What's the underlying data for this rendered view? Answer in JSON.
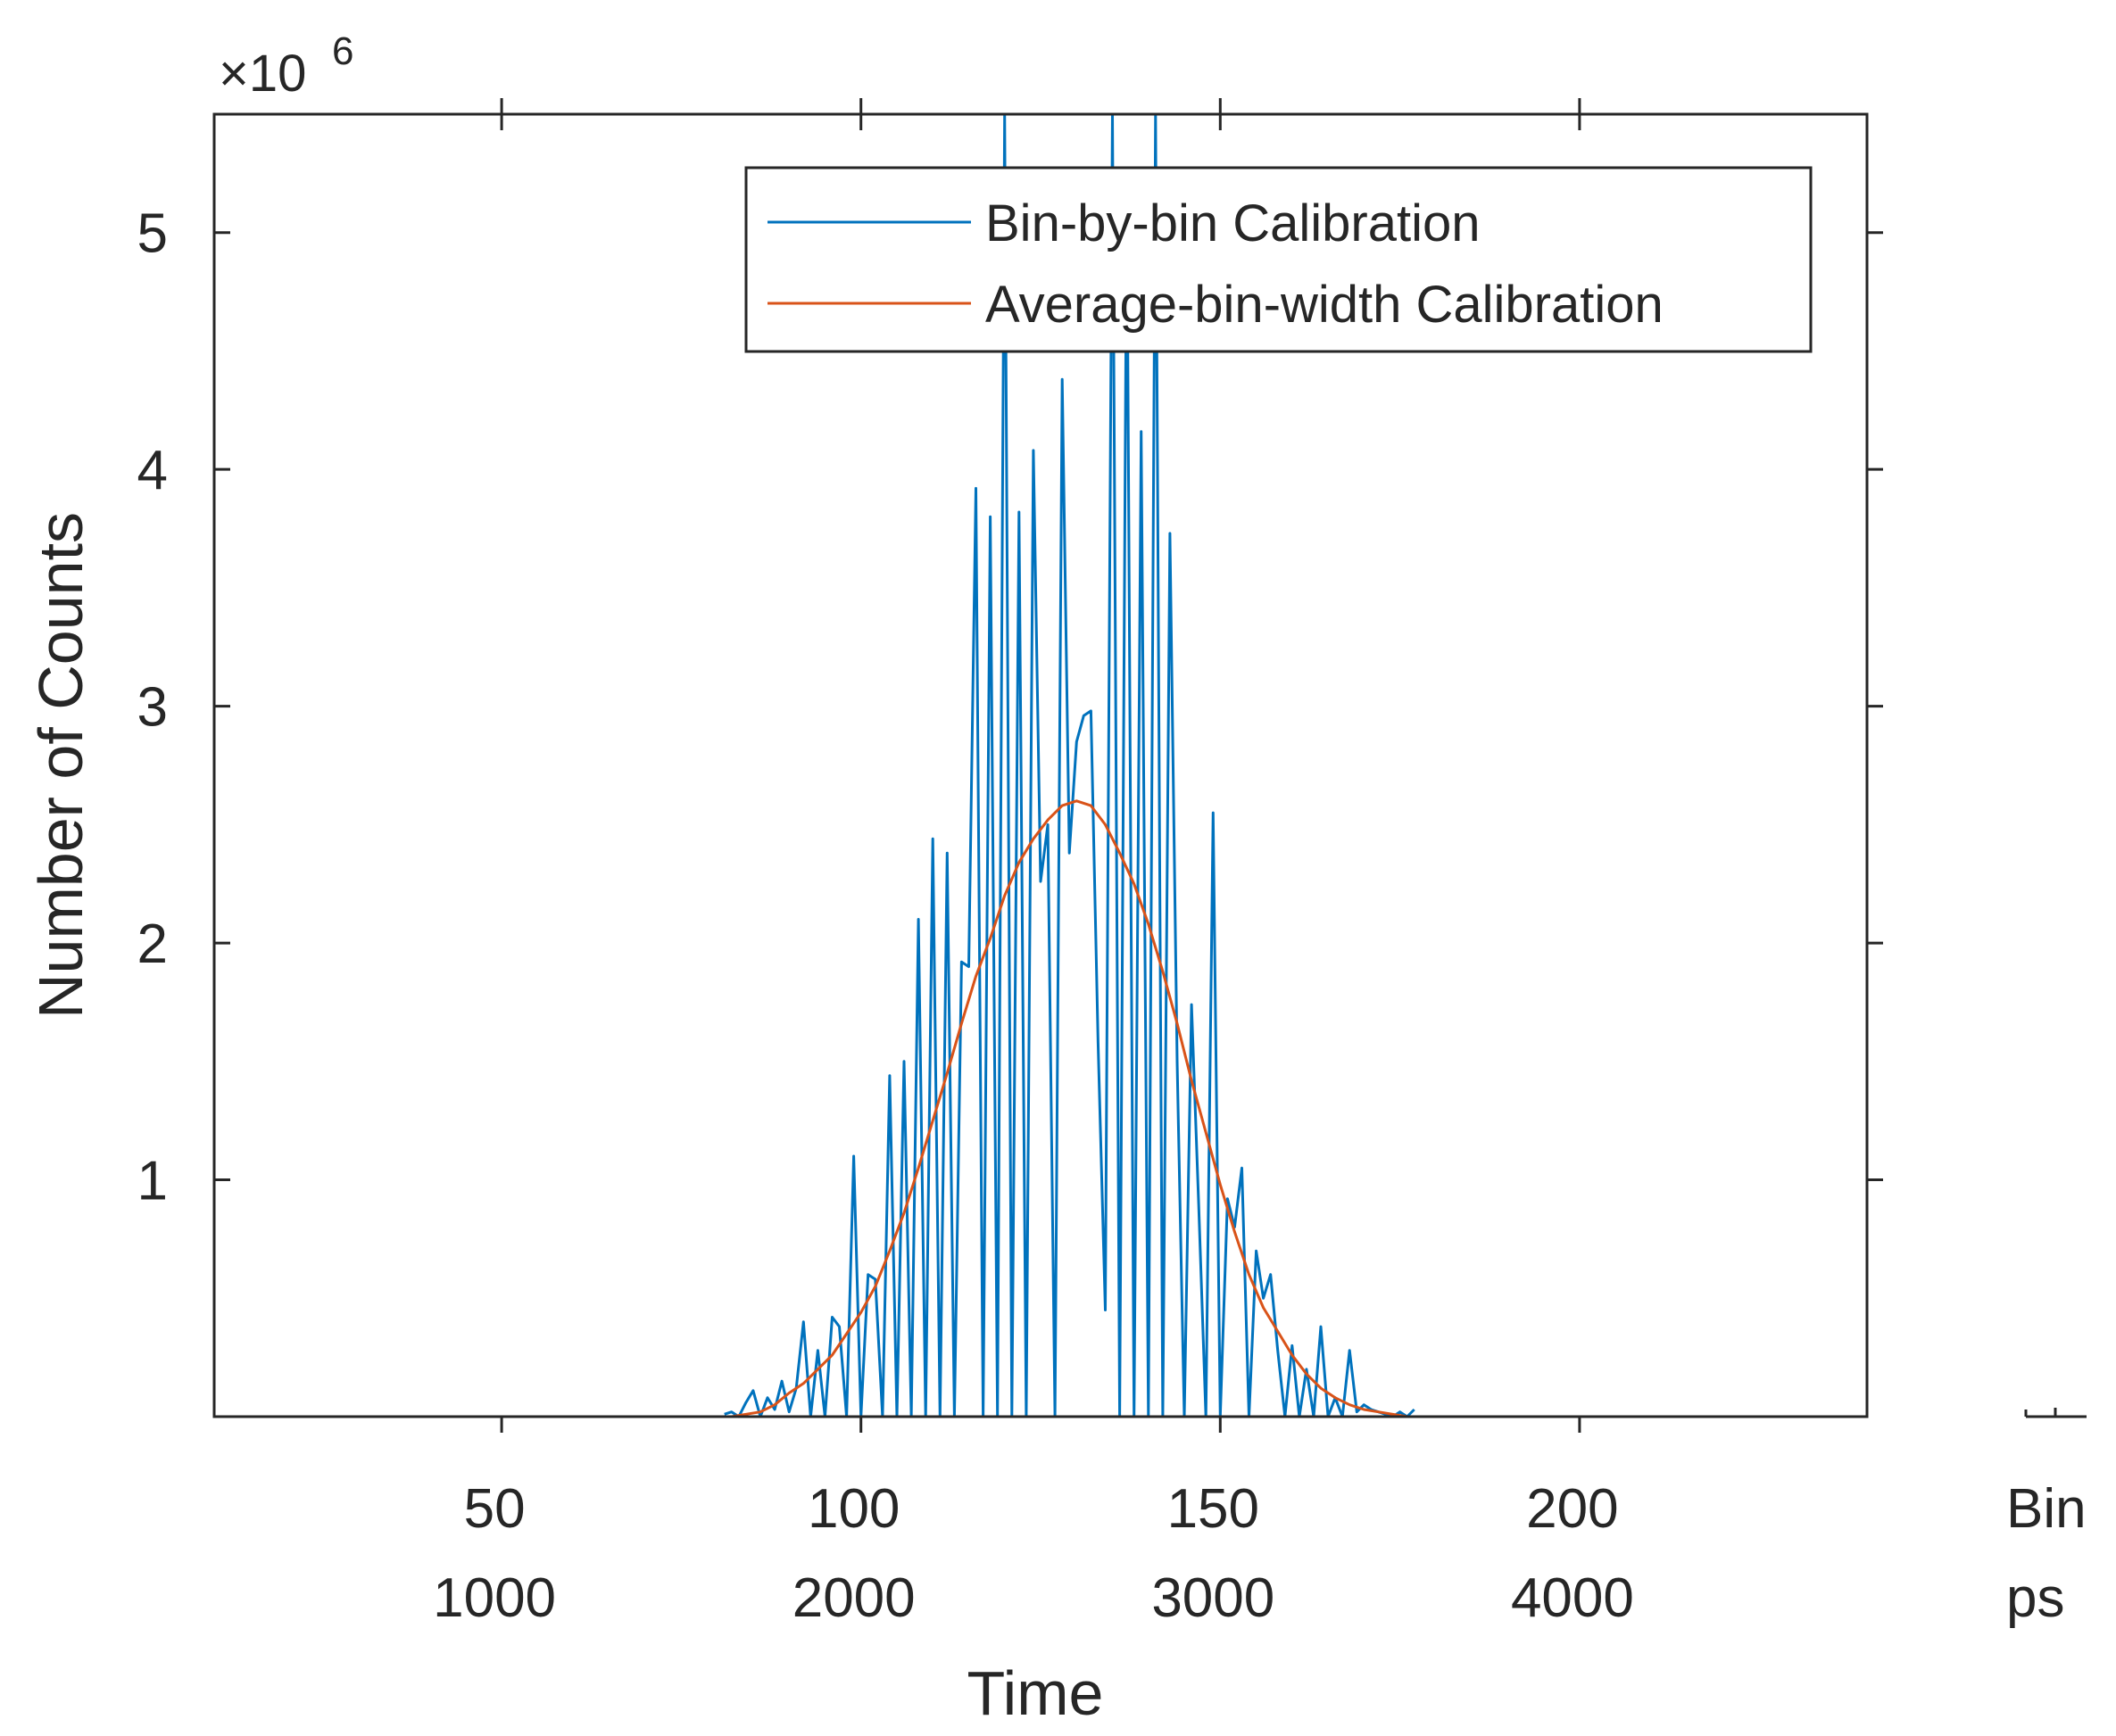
{
  "chart_data": {
    "type": "line",
    "title": "",
    "xlabel": "Time",
    "ylabel": "Number of Counts",
    "y_exponent_prefix": "×10",
    "y_exponent": "6",
    "xlim": [
      10,
      240
    ],
    "ylim": [
      0,
      5.5
    ],
    "x_ticks": [
      50,
      100,
      150,
      200
    ],
    "x_tick_labels_bin": [
      "50",
      "100",
      "150",
      "200"
    ],
    "x_tick_labels_ps": [
      "1000",
      "2000",
      "3000",
      "4000"
    ],
    "y_ticks": [
      1,
      2,
      3,
      4,
      5
    ],
    "y_tick_labels": [
      "1",
      "2",
      "3",
      "4",
      "5"
    ],
    "x_unit_bin": "Bin",
    "x_unit_ps": "ps",
    "grid": false,
    "legend_position": "top-right",
    "series": [
      {
        "name": "Bin-by-bin Calibration",
        "color": "#0072BD",
        "x": [
          81,
          82,
          83,
          84,
          85,
          86,
          87,
          88,
          89,
          90,
          91,
          92,
          93,
          94,
          95,
          96,
          97,
          98,
          99,
          100,
          101,
          102,
          103,
          104,
          105,
          106,
          107,
          108,
          109,
          110,
          111,
          112,
          113,
          114,
          115,
          116,
          117,
          118,
          119,
          120,
          121,
          122,
          123,
          124,
          125,
          126,
          127,
          128,
          129,
          130,
          131,
          132,
          133,
          134,
          135,
          136,
          137,
          138,
          139,
          140,
          141,
          142,
          143,
          144,
          145,
          146,
          147,
          148,
          149,
          150,
          151,
          152,
          153,
          154,
          155,
          156,
          157,
          158,
          159,
          160,
          161,
          162,
          163,
          164,
          165,
          166,
          167,
          168,
          169,
          170,
          171,
          172,
          173,
          174,
          175,
          176,
          177
        ],
        "values": [
          0.01,
          0.02,
          0.0,
          0.06,
          0.11,
          0.0,
          0.08,
          0.03,
          0.15,
          0.02,
          0.12,
          0.4,
          0.0,
          0.28,
          0.0,
          0.42,
          0.38,
          0.0,
          1.1,
          0.0,
          0.6,
          0.58,
          0.0,
          1.44,
          0.0,
          1.5,
          0.0,
          2.1,
          0.0,
          2.44,
          0.0,
          2.38,
          0.0,
          1.92,
          1.9,
          3.92,
          0.0,
          3.8,
          0.0,
          5.5,
          0.0,
          3.82,
          0.0,
          4.08,
          2.26,
          2.5,
          0.0,
          4.38,
          2.38,
          2.85,
          2.96,
          2.98,
          1.58,
          0.45,
          5.5,
          0.0,
          5.2,
          0.0,
          4.16,
          0.0,
          5.5,
          0.0,
          3.73,
          1.5,
          0.0,
          1.74,
          0.9,
          0.0,
          2.55,
          0.0,
          0.92,
          0.8,
          1.05,
          0.0,
          0.7,
          0.5,
          0.6,
          0.28,
          0.0,
          0.3,
          0.0,
          0.2,
          0.0,
          0.38,
          0.0,
          0.08,
          0.0,
          0.28,
          0.02,
          0.05,
          0.03,
          0.02,
          0.01,
          0.0,
          0.02,
          0.0,
          0.03
        ]
      },
      {
        "name": "Average-bin-width Calibration",
        "color": "#D95319",
        "x": [
          82,
          84,
          86,
          88,
          90,
          92,
          94,
          96,
          98,
          100,
          102,
          104,
          106,
          108,
          110,
          112,
          114,
          116,
          118,
          120,
          122,
          124,
          126,
          128,
          130,
          132,
          134,
          136,
          138,
          140,
          142,
          144,
          146,
          148,
          150,
          152,
          154,
          156,
          158,
          160,
          162,
          164,
          166,
          168,
          170,
          172,
          174,
          176
        ],
        "values": [
          0.0,
          0.01,
          0.02,
          0.05,
          0.1,
          0.14,
          0.2,
          0.26,
          0.35,
          0.44,
          0.55,
          0.7,
          0.86,
          1.05,
          1.25,
          1.45,
          1.66,
          1.86,
          2.02,
          2.2,
          2.34,
          2.44,
          2.52,
          2.58,
          2.6,
          2.58,
          2.5,
          2.38,
          2.25,
          2.08,
          1.88,
          1.66,
          1.42,
          1.2,
          0.98,
          0.78,
          0.6,
          0.46,
          0.36,
          0.26,
          0.18,
          0.12,
          0.08,
          0.05,
          0.03,
          0.02,
          0.01,
          0.0
        ]
      }
    ]
  }
}
